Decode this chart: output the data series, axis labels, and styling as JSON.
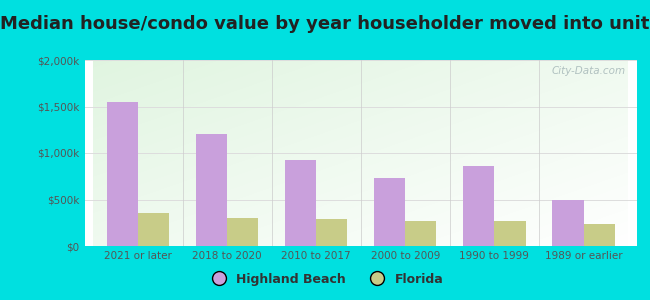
{
  "title": "Median house/condo value by year householder moved into unit",
  "categories": [
    "2021 or later",
    "2018 to 2020",
    "2010 to 2017",
    "2000 to 2009",
    "1990 to 1999",
    "1989 or earlier"
  ],
  "highland_beach": [
    1550000,
    1200000,
    920000,
    730000,
    860000,
    490000
  ],
  "florida": [
    350000,
    305000,
    285000,
    270000,
    270000,
    240000
  ],
  "highland_beach_color": "#c9a0dc",
  "florida_color": "#c8cc88",
  "background_outer": "#00e0e0",
  "title_fontsize": 13,
  "ylabel_values": [
    0,
    500000,
    1000000,
    1500000,
    2000000
  ],
  "ylabel_labels": [
    "$0",
    "$500k",
    "$1,000k",
    "$1,500k",
    "$2,000k"
  ],
  "bar_width": 0.35,
  "watermark": "City-Data.com",
  "legend_highland": "Highland Beach",
  "legend_florida": "Florida"
}
